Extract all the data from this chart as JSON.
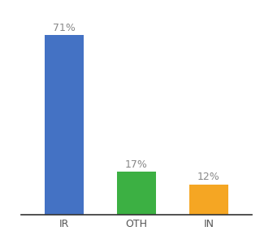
{
  "categories": [
    "IR",
    "OTH",
    "IN"
  ],
  "values": [
    71,
    17,
    12
  ],
  "bar_colors": [
    "#4472c4",
    "#3cb043",
    "#f5a623"
  ],
  "labels": [
    "71%",
    "17%",
    "12%"
  ],
  "ylim": [
    0,
    80
  ],
  "background_color": "#ffffff",
  "label_fontsize": 9,
  "tick_fontsize": 9,
  "bar_width": 0.55
}
